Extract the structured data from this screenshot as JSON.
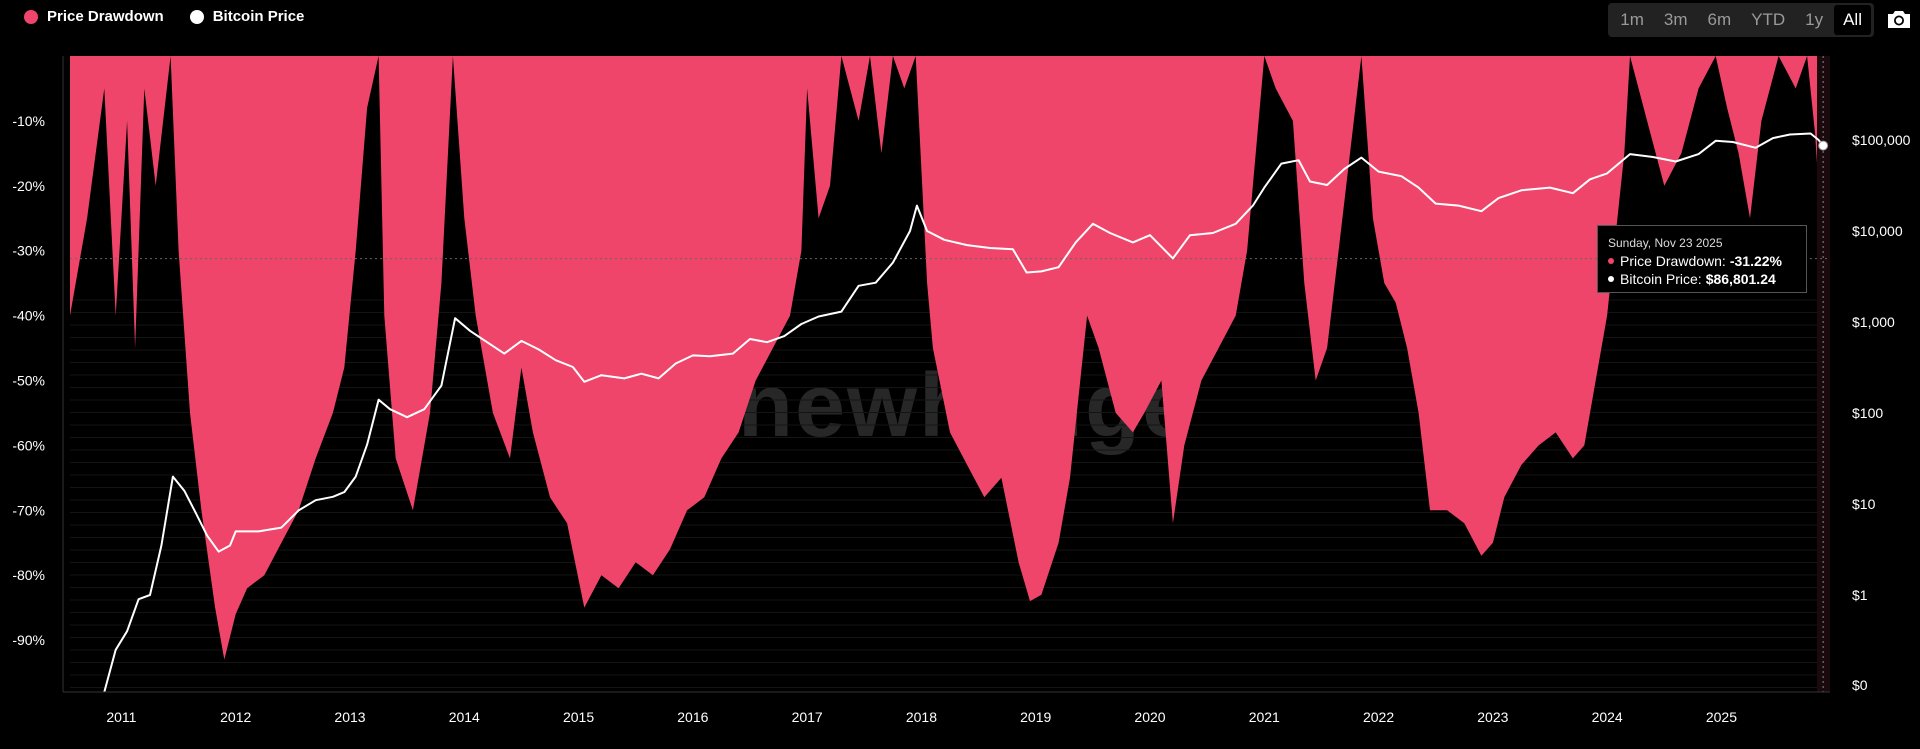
{
  "legend": {
    "drawdown_label": "Price Drawdown",
    "price_label": "Bitcoin Price",
    "drawdown_color": "#f0456b",
    "price_color": "#ffffff"
  },
  "range_selector": {
    "buttons": [
      "1m",
      "3m",
      "6m",
      "YTD",
      "1y",
      "All"
    ],
    "active": "All"
  },
  "camera_icon": "camera-icon",
  "watermark": "newhedge",
  "tooltip": {
    "date": "Sunday, Nov 23 2025",
    "drawdown_label": "Price Drawdown:",
    "drawdown_value": "-31.22%",
    "price_label": "Bitcoin Price:",
    "price_value": "$86,801.24"
  },
  "chart_data": {
    "type": "area",
    "x_ticks": [
      "2011",
      "2012",
      "2013",
      "2014",
      "2015",
      "2016",
      "2017",
      "2018",
      "2019",
      "2020",
      "2021",
      "2022",
      "2023",
      "2024",
      "2025"
    ],
    "left_axis_ticks": [
      "-10%",
      "-20%",
      "-30%",
      "-40%",
      "-50%",
      "-60%",
      "-70%",
      "-80%",
      "-90%"
    ],
    "right_axis_ticks": [
      "$100,000",
      "$10,000",
      "$1,000",
      "$100",
      "$10",
      "$1",
      "$0"
    ],
    "left_ylim": [
      -98,
      0
    ],
    "right_scale": "log",
    "grid": false,
    "series": [
      {
        "name": "Price Drawdown",
        "axis": "left",
        "unit": "%",
        "points": [
          [
            2010.55,
            -40
          ],
          [
            2010.7,
            -25
          ],
          [
            2010.85,
            -5
          ],
          [
            2010.95,
            -40
          ],
          [
            2011.05,
            -10
          ],
          [
            2011.12,
            -45
          ],
          [
            2011.2,
            -5
          ],
          [
            2011.3,
            -20
          ],
          [
            2011.43,
            0
          ],
          [
            2011.5,
            -30
          ],
          [
            2011.6,
            -55
          ],
          [
            2011.7,
            -70
          ],
          [
            2011.82,
            -85
          ],
          [
            2011.9,
            -93
          ],
          [
            2012.0,
            -86
          ],
          [
            2012.1,
            -82
          ],
          [
            2012.25,
            -80
          ],
          [
            2012.4,
            -75
          ],
          [
            2012.55,
            -70
          ],
          [
            2012.7,
            -62
          ],
          [
            2012.85,
            -55
          ],
          [
            2012.95,
            -48
          ],
          [
            2013.05,
            -30
          ],
          [
            2013.15,
            -8
          ],
          [
            2013.25,
            0
          ],
          [
            2013.3,
            -40
          ],
          [
            2013.4,
            -62
          ],
          [
            2013.55,
            -70
          ],
          [
            2013.7,
            -55
          ],
          [
            2013.8,
            -35
          ],
          [
            2013.9,
            0
          ],
          [
            2014.0,
            -25
          ],
          [
            2014.1,
            -40
          ],
          [
            2014.25,
            -55
          ],
          [
            2014.4,
            -62
          ],
          [
            2014.5,
            -48
          ],
          [
            2014.6,
            -58
          ],
          [
            2014.75,
            -68
          ],
          [
            2014.9,
            -72
          ],
          [
            2015.05,
            -85
          ],
          [
            2015.2,
            -80
          ],
          [
            2015.35,
            -82
          ],
          [
            2015.5,
            -78
          ],
          [
            2015.65,
            -80
          ],
          [
            2015.8,
            -76
          ],
          [
            2015.95,
            -70
          ],
          [
            2016.1,
            -68
          ],
          [
            2016.25,
            -62
          ],
          [
            2016.4,
            -58
          ],
          [
            2016.55,
            -50
          ],
          [
            2016.7,
            -45
          ],
          [
            2016.85,
            -40
          ],
          [
            2016.95,
            -30
          ],
          [
            2017.0,
            -5
          ],
          [
            2017.1,
            -25
          ],
          [
            2017.2,
            -20
          ],
          [
            2017.3,
            0
          ],
          [
            2017.45,
            -10
          ],
          [
            2017.55,
            0
          ],
          [
            2017.65,
            -15
          ],
          [
            2017.75,
            0
          ],
          [
            2017.85,
            -5
          ],
          [
            2017.95,
            0
          ],
          [
            2018.05,
            -35
          ],
          [
            2018.1,
            -45
          ],
          [
            2018.25,
            -58
          ],
          [
            2018.4,
            -63
          ],
          [
            2018.55,
            -68
          ],
          [
            2018.7,
            -65
          ],
          [
            2018.85,
            -78
          ],
          [
            2018.95,
            -84
          ],
          [
            2019.05,
            -83
          ],
          [
            2019.2,
            -75
          ],
          [
            2019.3,
            -65
          ],
          [
            2019.45,
            -40
          ],
          [
            2019.55,
            -45
          ],
          [
            2019.7,
            -55
          ],
          [
            2019.85,
            -58
          ],
          [
            2019.95,
            -55
          ],
          [
            2020.1,
            -50
          ],
          [
            2020.2,
            -72
          ],
          [
            2020.3,
            -60
          ],
          [
            2020.45,
            -50
          ],
          [
            2020.6,
            -45
          ],
          [
            2020.75,
            -40
          ],
          [
            2020.85,
            -30
          ],
          [
            2020.95,
            -10
          ],
          [
            2021.0,
            0
          ],
          [
            2021.1,
            -5
          ],
          [
            2021.25,
            -10
          ],
          [
            2021.35,
            -35
          ],
          [
            2021.45,
            -50
          ],
          [
            2021.55,
            -45
          ],
          [
            2021.65,
            -30
          ],
          [
            2021.75,
            -15
          ],
          [
            2021.85,
            0
          ],
          [
            2021.95,
            -25
          ],
          [
            2022.05,
            -35
          ],
          [
            2022.15,
            -38
          ],
          [
            2022.25,
            -45
          ],
          [
            2022.35,
            -55
          ],
          [
            2022.45,
            -70
          ],
          [
            2022.6,
            -70
          ],
          [
            2022.75,
            -72
          ],
          [
            2022.9,
            -77
          ],
          [
            2023.0,
            -75
          ],
          [
            2023.1,
            -68
          ],
          [
            2023.25,
            -63
          ],
          [
            2023.4,
            -60
          ],
          [
            2023.55,
            -58
          ],
          [
            2023.7,
            -62
          ],
          [
            2023.8,
            -60
          ],
          [
            2023.9,
            -50
          ],
          [
            2024.0,
            -40
          ],
          [
            2024.15,
            -15
          ],
          [
            2024.2,
            0
          ],
          [
            2024.35,
            -10
          ],
          [
            2024.5,
            -20
          ],
          [
            2024.65,
            -15
          ],
          [
            2024.8,
            -5
          ],
          [
            2024.95,
            0
          ],
          [
            2025.05,
            -8
          ],
          [
            2025.15,
            -15
          ],
          [
            2025.25,
            -25
          ],
          [
            2025.35,
            -10
          ],
          [
            2025.5,
            0
          ],
          [
            2025.65,
            -5
          ],
          [
            2025.75,
            0
          ],
          [
            2025.82,
            -12
          ],
          [
            2025.89,
            -31.22
          ]
        ]
      },
      {
        "name": "Bitcoin Price",
        "axis": "right",
        "unit": "USD",
        "points": [
          [
            2010.85,
            0.06
          ],
          [
            2010.95,
            0.25
          ],
          [
            2011.05,
            0.4
          ],
          [
            2011.15,
            0.9
          ],
          [
            2011.25,
            1.0
          ],
          [
            2011.35,
            3.5
          ],
          [
            2011.45,
            20
          ],
          [
            2011.55,
            14
          ],
          [
            2011.65,
            8
          ],
          [
            2011.75,
            4.5
          ],
          [
            2011.85,
            3.0
          ],
          [
            2011.95,
            3.5
          ],
          [
            2012.0,
            5.0
          ],
          [
            2012.2,
            5.0
          ],
          [
            2012.4,
            5.5
          ],
          [
            2012.55,
            8.5
          ],
          [
            2012.7,
            11
          ],
          [
            2012.85,
            12
          ],
          [
            2012.95,
            13.5
          ],
          [
            2013.05,
            20
          ],
          [
            2013.15,
            45
          ],
          [
            2013.25,
            140
          ],
          [
            2013.35,
            110
          ],
          [
            2013.5,
            90
          ],
          [
            2013.65,
            110
          ],
          [
            2013.8,
            200
          ],
          [
            2013.92,
            1100
          ],
          [
            2014.05,
            800
          ],
          [
            2014.2,
            600
          ],
          [
            2014.35,
            450
          ],
          [
            2014.5,
            620
          ],
          [
            2014.65,
            500
          ],
          [
            2014.8,
            380
          ],
          [
            2014.95,
            320
          ],
          [
            2015.05,
            220
          ],
          [
            2015.2,
            260
          ],
          [
            2015.4,
            240
          ],
          [
            2015.55,
            270
          ],
          [
            2015.7,
            240
          ],
          [
            2015.85,
            350
          ],
          [
            2016.0,
            430
          ],
          [
            2016.15,
            420
          ],
          [
            2016.35,
            450
          ],
          [
            2016.5,
            650
          ],
          [
            2016.65,
            600
          ],
          [
            2016.8,
            700
          ],
          [
            2016.95,
            950
          ],
          [
            2017.1,
            1150
          ],
          [
            2017.3,
            1300
          ],
          [
            2017.45,
            2500
          ],
          [
            2017.6,
            2700
          ],
          [
            2017.75,
            4500
          ],
          [
            2017.9,
            10000
          ],
          [
            2017.96,
            19000
          ],
          [
            2018.05,
            10000
          ],
          [
            2018.2,
            8000
          ],
          [
            2018.4,
            7000
          ],
          [
            2018.6,
            6500
          ],
          [
            2018.8,
            6300
          ],
          [
            2018.92,
            3500
          ],
          [
            2019.05,
            3600
          ],
          [
            2019.2,
            4000
          ],
          [
            2019.35,
            7500
          ],
          [
            2019.5,
            12000
          ],
          [
            2019.65,
            9500
          ],
          [
            2019.85,
            7500
          ],
          [
            2020.0,
            9000
          ],
          [
            2020.2,
            5000
          ],
          [
            2020.35,
            9000
          ],
          [
            2020.55,
            9500
          ],
          [
            2020.75,
            12000
          ],
          [
            2020.9,
            19000
          ],
          [
            2021.0,
            30000
          ],
          [
            2021.15,
            55000
          ],
          [
            2021.3,
            60000
          ],
          [
            2021.4,
            35000
          ],
          [
            2021.55,
            32000
          ],
          [
            2021.7,
            48000
          ],
          [
            2021.85,
            64000
          ],
          [
            2022.0,
            45000
          ],
          [
            2022.2,
            40000
          ],
          [
            2022.35,
            30000
          ],
          [
            2022.5,
            20000
          ],
          [
            2022.7,
            19000
          ],
          [
            2022.9,
            16500
          ],
          [
            2023.05,
            23000
          ],
          [
            2023.25,
            28000
          ],
          [
            2023.5,
            30000
          ],
          [
            2023.7,
            26000
          ],
          [
            2023.85,
            37000
          ],
          [
            2024.0,
            43000
          ],
          [
            2024.2,
            70000
          ],
          [
            2024.4,
            65000
          ],
          [
            2024.6,
            58000
          ],
          [
            2024.8,
            70000
          ],
          [
            2024.95,
            98000
          ],
          [
            2025.1,
            95000
          ],
          [
            2025.3,
            82000
          ],
          [
            2025.45,
            105000
          ],
          [
            2025.6,
            115000
          ],
          [
            2025.78,
            118000
          ],
          [
            2025.85,
            100000
          ],
          [
            2025.89,
            86801.24
          ]
        ]
      }
    ]
  }
}
